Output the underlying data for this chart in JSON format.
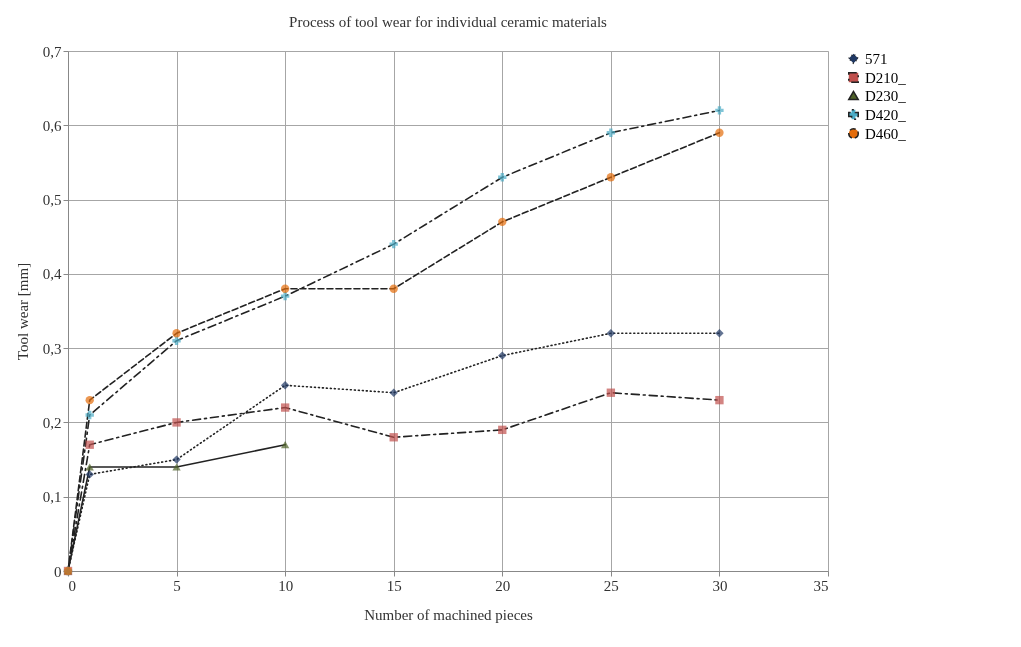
{
  "chart_data": {
    "type": "line",
    "title": "Process of tool wear for individual ceramic materials",
    "xlabel": "Number of machined pieces",
    "ylabel": "Tool wear [mm]",
    "x": [
      0,
      1,
      5,
      10,
      15,
      20,
      25,
      30
    ],
    "series": [
      {
        "name": "571",
        "color": "#1f3864",
        "marker": "diamond",
        "line_style": "dotted",
        "values": [
          0,
          0.13,
          0.15,
          0.25,
          0.24,
          0.29,
          0.32,
          0.32
        ]
      },
      {
        "name": "D210_",
        "color": "#c0504d",
        "marker": "square",
        "line_style": "dashdot",
        "values": [
          0,
          0.17,
          0.2,
          0.22,
          0.18,
          0.19,
          0.24,
          0.23
        ]
      },
      {
        "name": "D230_",
        "color": "#4f6228",
        "marker": "triangle",
        "line_style": "solid",
        "x": [
          0,
          1,
          5,
          10
        ],
        "values": [
          0,
          0.14,
          0.14,
          0.17
        ]
      },
      {
        "name": "D420_",
        "color": "#4bacc6",
        "marker": "cross",
        "line_style": "dashdot",
        "values": [
          0,
          0.21,
          0.31,
          0.37,
          0.44,
          0.53,
          0.59,
          0.62
        ]
      },
      {
        "name": "D460_",
        "color": "#e46c0a",
        "marker": "circle",
        "line_style": "dashed",
        "values": [
          0,
          0.23,
          0.32,
          0.38,
          0.38,
          0.47,
          0.53,
          0.59
        ]
      }
    ],
    "xlim": [
      0,
      35
    ],
    "xticks": [
      0,
      5,
      10,
      15,
      20,
      25,
      30,
      35
    ],
    "ylim": [
      0,
      0.7
    ],
    "yticks": [
      0,
      {
        "value": 0.1,
        "label": "0,1"
      },
      {
        "value": 0.2,
        "label": "0,2"
      },
      {
        "value": 0.3,
        "label": "0,3"
      },
      {
        "value": 0.4,
        "label": "0,4"
      },
      {
        "value": 0.5,
        "label": "0,5"
      },
      {
        "value": 0.6,
        "label": "0,6"
      },
      {
        "value": 0.7,
        "label": "0,7"
      }
    ],
    "grid": true,
    "legend": "right"
  }
}
